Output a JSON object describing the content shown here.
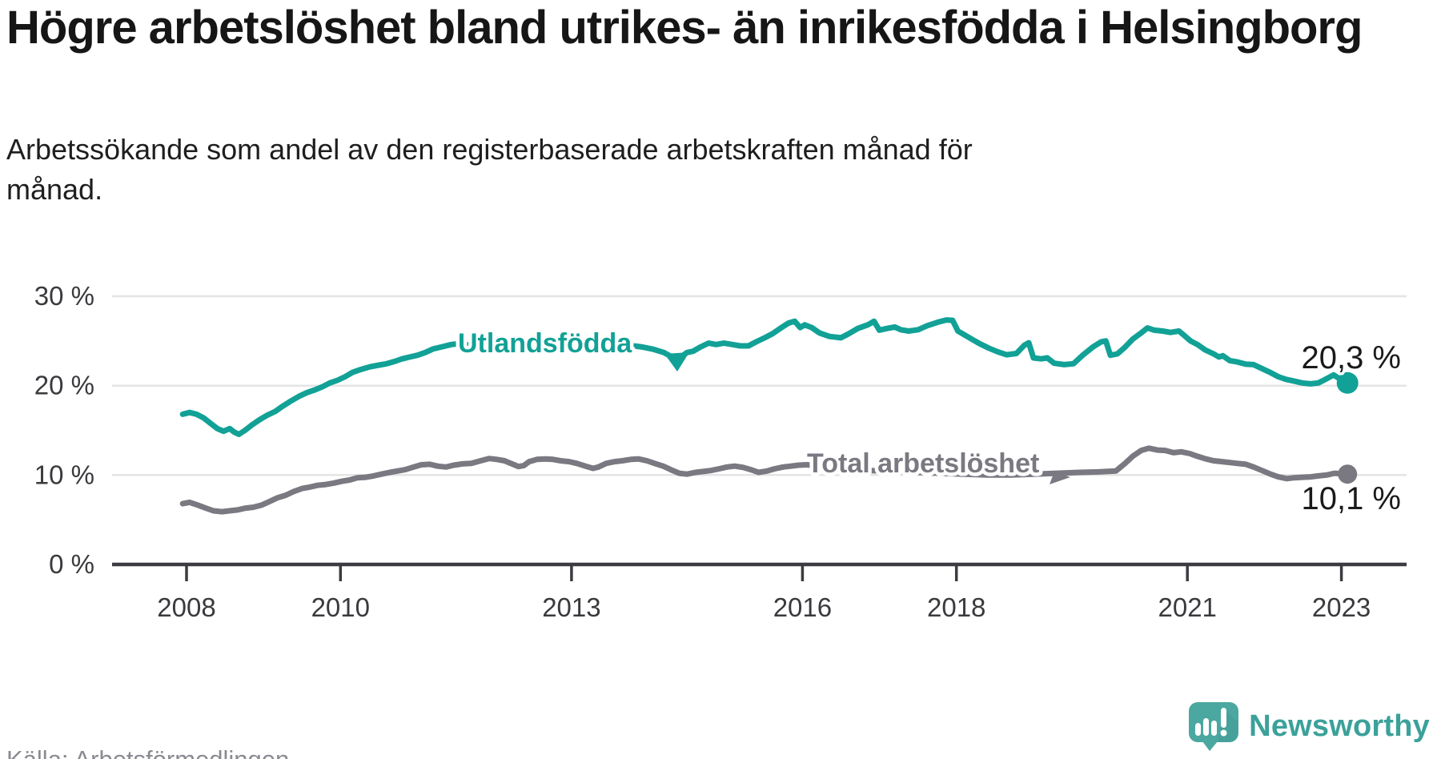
{
  "title": "Högre arbetslöshet bland utrikes- än inrikesfödda i Helsingborg",
  "subtitle": "Arbetssökande som andel av den registerbaserade arbetskraften månad för månad.",
  "source": "Källa: Arbetsförmedlingen",
  "branding": {
    "logo_text": "Newsworthy",
    "logo_color": "#3ba19a",
    "bubble_color": "#4ba8a1"
  },
  "chart_data": {
    "type": "line",
    "title": "Högre arbetslöshet bland utrikes- än inrikesfödda i Helsingborg",
    "subtitle": "Arbetssökande som andel av den registerbaserade arbetskraften månad för månad.",
    "unit": "%",
    "grid": "horizontal",
    "x_axis": {
      "ticks": [
        "2008",
        "2010",
        "2013",
        "2016",
        "2018",
        "2021",
        "2023"
      ],
      "tick_years": [
        2008,
        2010,
        2013,
        2016,
        2018,
        2021,
        2023
      ],
      "range": [
        2007.9,
        2023.2
      ]
    },
    "y_axis": {
      "ticks": [
        "30 %",
        "20 %",
        "10 %",
        "0 %"
      ],
      "tick_values": [
        30,
        20,
        10,
        0
      ],
      "range": [
        0,
        30
      ]
    },
    "series": [
      {
        "name": "Utlandsfödda",
        "color": "#12a196",
        "end_label": "20,3 %",
        "end_value": 20.3,
        "points": [
          [
            2007.95,
            16.8
          ],
          [
            2008.04,
            17.0
          ],
          [
            2008.13,
            16.8
          ],
          [
            2008.22,
            16.4
          ],
          [
            2008.31,
            15.8
          ],
          [
            2008.4,
            15.2
          ],
          [
            2008.48,
            14.9
          ],
          [
            2008.56,
            15.2
          ],
          [
            2008.62,
            14.8
          ],
          [
            2008.68,
            14.55
          ],
          [
            2008.76,
            15.0
          ],
          [
            2008.85,
            15.6
          ],
          [
            2008.95,
            16.2
          ],
          [
            2009.05,
            16.7
          ],
          [
            2009.15,
            17.1
          ],
          [
            2009.25,
            17.7
          ],
          [
            2009.36,
            18.3
          ],
          [
            2009.46,
            18.8
          ],
          [
            2009.56,
            19.2
          ],
          [
            2009.66,
            19.5
          ],
          [
            2009.76,
            19.85
          ],
          [
            2009.86,
            20.3
          ],
          [
            2009.96,
            20.6
          ],
          [
            2010.06,
            21.0
          ],
          [
            2010.16,
            21.5
          ],
          [
            2010.26,
            21.8
          ],
          [
            2010.38,
            22.1
          ],
          [
            2010.5,
            22.3
          ],
          [
            2010.6,
            22.45
          ],
          [
            2010.7,
            22.7
          ],
          [
            2010.8,
            23.0
          ],
          [
            2010.9,
            23.2
          ],
          [
            2011.0,
            23.4
          ],
          [
            2011.1,
            23.7
          ],
          [
            2011.2,
            24.1
          ],
          [
            2011.32,
            24.35
          ],
          [
            2011.44,
            24.6
          ],
          [
            2011.54,
            24.7
          ],
          [
            2011.64,
            24.55
          ],
          [
            2011.76,
            24.65
          ],
          [
            2011.9,
            24.75
          ],
          [
            2012.05,
            24.85
          ],
          [
            2012.2,
            24.9
          ],
          [
            2012.35,
            25.0
          ],
          [
            2012.5,
            24.85
          ],
          [
            2012.65,
            24.8
          ],
          [
            2012.8,
            24.95
          ],
          [
            2012.95,
            24.9
          ],
          [
            2013.1,
            24.8
          ],
          [
            2013.3,
            24.75
          ],
          [
            2013.5,
            24.7
          ],
          [
            2013.7,
            24.55
          ],
          [
            2013.9,
            24.35
          ],
          [
            2014.05,
            24.1
          ],
          [
            2014.2,
            23.7
          ],
          [
            2014.37,
            22.9
          ],
          [
            2014.5,
            23.7
          ],
          [
            2014.58,
            23.85
          ],
          [
            2014.67,
            24.3
          ],
          [
            2014.78,
            24.75
          ],
          [
            2014.88,
            24.6
          ],
          [
            2014.98,
            24.75
          ],
          [
            2015.09,
            24.6
          ],
          [
            2015.19,
            24.45
          ],
          [
            2015.3,
            24.45
          ],
          [
            2015.4,
            24.9
          ],
          [
            2015.51,
            25.35
          ],
          [
            2015.61,
            25.8
          ],
          [
            2015.71,
            26.4
          ],
          [
            2015.82,
            27.0
          ],
          [
            2015.9,
            27.2
          ],
          [
            2015.97,
            26.5
          ],
          [
            2016.03,
            26.8
          ],
          [
            2016.12,
            26.5
          ],
          [
            2016.22,
            25.9
          ],
          [
            2016.35,
            25.5
          ],
          [
            2016.5,
            25.35
          ],
          [
            2016.6,
            25.8
          ],
          [
            2016.72,
            26.4
          ],
          [
            2016.85,
            26.8
          ],
          [
            2016.93,
            27.2
          ],
          [
            2017.0,
            26.2
          ],
          [
            2017.1,
            26.4
          ],
          [
            2017.2,
            26.55
          ],
          [
            2017.28,
            26.25
          ],
          [
            2017.38,
            26.1
          ],
          [
            2017.5,
            26.25
          ],
          [
            2017.62,
            26.7
          ],
          [
            2017.76,
            27.1
          ],
          [
            2017.87,
            27.35
          ],
          [
            2017.95,
            27.3
          ],
          [
            2018.02,
            26.1
          ],
          [
            2018.1,
            25.7
          ],
          [
            2018.2,
            25.2
          ],
          [
            2018.3,
            24.7
          ],
          [
            2018.42,
            24.2
          ],
          [
            2018.53,
            23.8
          ],
          [
            2018.65,
            23.45
          ],
          [
            2018.78,
            23.6
          ],
          [
            2018.88,
            24.5
          ],
          [
            2018.94,
            24.8
          ],
          [
            2019.0,
            23.1
          ],
          [
            2019.1,
            23.0
          ],
          [
            2019.18,
            23.1
          ],
          [
            2019.27,
            22.5
          ],
          [
            2019.4,
            22.35
          ],
          [
            2019.52,
            22.45
          ],
          [
            2019.64,
            23.4
          ],
          [
            2019.77,
            24.3
          ],
          [
            2019.88,
            24.9
          ],
          [
            2019.94,
            25.0
          ],
          [
            2020.0,
            23.4
          ],
          [
            2020.09,
            23.55
          ],
          [
            2020.19,
            24.3
          ],
          [
            2020.29,
            25.2
          ],
          [
            2020.4,
            25.9
          ],
          [
            2020.48,
            26.45
          ],
          [
            2020.57,
            26.2
          ],
          [
            2020.68,
            26.1
          ],
          [
            2020.78,
            25.95
          ],
          [
            2020.89,
            26.1
          ],
          [
            2020.96,
            25.6
          ],
          [
            2021.04,
            25.0
          ],
          [
            2021.13,
            24.6
          ],
          [
            2021.23,
            24.0
          ],
          [
            2021.34,
            23.55
          ],
          [
            2021.41,
            23.2
          ],
          [
            2021.46,
            23.35
          ],
          [
            2021.55,
            22.8
          ],
          [
            2021.65,
            22.65
          ],
          [
            2021.76,
            22.4
          ],
          [
            2021.86,
            22.35
          ],
          [
            2021.97,
            21.9
          ],
          [
            2022.07,
            21.5
          ],
          [
            2022.18,
            21.0
          ],
          [
            2022.28,
            20.7
          ],
          [
            2022.39,
            20.5
          ],
          [
            2022.49,
            20.3
          ],
          [
            2022.6,
            20.2
          ],
          [
            2022.7,
            20.3
          ],
          [
            2022.77,
            20.6
          ],
          [
            2022.9,
            21.2
          ],
          [
            2022.97,
            20.8
          ],
          [
            2023.08,
            20.3
          ]
        ]
      },
      {
        "name": "Total arbetslöshet",
        "color": "#7a7880",
        "end_label": "10,1 %",
        "end_value": 10.1,
        "points": [
          [
            2007.95,
            6.8
          ],
          [
            2008.04,
            6.95
          ],
          [
            2008.14,
            6.65
          ],
          [
            2008.25,
            6.3
          ],
          [
            2008.35,
            6.0
          ],
          [
            2008.46,
            5.9
          ],
          [
            2008.56,
            6.0
          ],
          [
            2008.66,
            6.1
          ],
          [
            2008.77,
            6.3
          ],
          [
            2008.87,
            6.4
          ],
          [
            2008.98,
            6.65
          ],
          [
            2009.08,
            7.05
          ],
          [
            2009.18,
            7.45
          ],
          [
            2009.29,
            7.75
          ],
          [
            2009.39,
            8.15
          ],
          [
            2009.5,
            8.5
          ],
          [
            2009.6,
            8.65
          ],
          [
            2009.7,
            8.85
          ],
          [
            2009.81,
            8.95
          ],
          [
            2009.91,
            9.1
          ],
          [
            2010.02,
            9.3
          ],
          [
            2010.12,
            9.45
          ],
          [
            2010.22,
            9.7
          ],
          [
            2010.33,
            9.75
          ],
          [
            2010.43,
            9.9
          ],
          [
            2010.53,
            10.1
          ],
          [
            2010.64,
            10.3
          ],
          [
            2010.74,
            10.45
          ],
          [
            2010.84,
            10.6
          ],
          [
            2010.95,
            10.9
          ],
          [
            2011.05,
            11.15
          ],
          [
            2011.16,
            11.2
          ],
          [
            2011.26,
            11.0
          ],
          [
            2011.37,
            10.9
          ],
          [
            2011.47,
            11.1
          ],
          [
            2011.58,
            11.25
          ],
          [
            2011.7,
            11.3
          ],
          [
            2011.82,
            11.6
          ],
          [
            2011.93,
            11.85
          ],
          [
            2012.03,
            11.75
          ],
          [
            2012.13,
            11.6
          ],
          [
            2012.24,
            11.2
          ],
          [
            2012.31,
            10.95
          ],
          [
            2012.38,
            11.05
          ],
          [
            2012.45,
            11.5
          ],
          [
            2012.55,
            11.75
          ],
          [
            2012.66,
            11.8
          ],
          [
            2012.76,
            11.75
          ],
          [
            2012.86,
            11.6
          ],
          [
            2012.97,
            11.5
          ],
          [
            2013.07,
            11.3
          ],
          [
            2013.18,
            11.0
          ],
          [
            2013.28,
            10.75
          ],
          [
            2013.35,
            10.9
          ],
          [
            2013.45,
            11.3
          ],
          [
            2013.56,
            11.5
          ],
          [
            2013.66,
            11.6
          ],
          [
            2013.77,
            11.75
          ],
          [
            2013.87,
            11.8
          ],
          [
            2013.98,
            11.6
          ],
          [
            2014.08,
            11.3
          ],
          [
            2014.19,
            11.0
          ],
          [
            2014.29,
            10.6
          ],
          [
            2014.4,
            10.2
          ],
          [
            2014.5,
            10.1
          ],
          [
            2014.61,
            10.3
          ],
          [
            2014.71,
            10.4
          ],
          [
            2014.81,
            10.5
          ],
          [
            2014.92,
            10.7
          ],
          [
            2015.02,
            10.9
          ],
          [
            2015.12,
            11.0
          ],
          [
            2015.23,
            10.85
          ],
          [
            2015.33,
            10.6
          ],
          [
            2015.43,
            10.3
          ],
          [
            2015.54,
            10.45
          ],
          [
            2015.64,
            10.7
          ],
          [
            2015.75,
            10.9
          ],
          [
            2015.85,
            11.0
          ],
          [
            2015.95,
            11.1
          ],
          [
            2016.06,
            11.15
          ],
          [
            2016.3,
            10.9
          ],
          [
            2016.6,
            10.7
          ],
          [
            2016.9,
            10.5
          ],
          [
            2017.2,
            10.4
          ],
          [
            2017.5,
            10.3
          ],
          [
            2017.8,
            10.2
          ],
          [
            2018.1,
            10.1
          ],
          [
            2018.4,
            10.0
          ],
          [
            2018.7,
            10.0
          ],
          [
            2019.0,
            10.1
          ],
          [
            2019.3,
            10.2
          ],
          [
            2019.6,
            10.3
          ],
          [
            2019.85,
            10.35
          ],
          [
            2020.07,
            10.45
          ],
          [
            2020.19,
            11.3
          ],
          [
            2020.29,
            12.1
          ],
          [
            2020.4,
            12.75
          ],
          [
            2020.5,
            13.0
          ],
          [
            2020.61,
            12.8
          ],
          [
            2020.71,
            12.75
          ],
          [
            2020.82,
            12.5
          ],
          [
            2020.92,
            12.6
          ],
          [
            2021.03,
            12.4
          ],
          [
            2021.13,
            12.1
          ],
          [
            2021.24,
            11.8
          ],
          [
            2021.34,
            11.6
          ],
          [
            2021.45,
            11.5
          ],
          [
            2021.55,
            11.4
          ],
          [
            2021.65,
            11.3
          ],
          [
            2021.76,
            11.2
          ],
          [
            2021.86,
            10.9
          ],
          [
            2021.97,
            10.5
          ],
          [
            2022.08,
            10.1
          ],
          [
            2022.18,
            9.8
          ],
          [
            2022.29,
            9.6
          ],
          [
            2022.39,
            9.7
          ],
          [
            2022.5,
            9.75
          ],
          [
            2022.6,
            9.8
          ],
          [
            2022.7,
            9.9
          ],
          [
            2022.81,
            10.0
          ],
          [
            2022.91,
            10.2
          ],
          [
            2023.08,
            10.1
          ]
        ]
      }
    ]
  }
}
